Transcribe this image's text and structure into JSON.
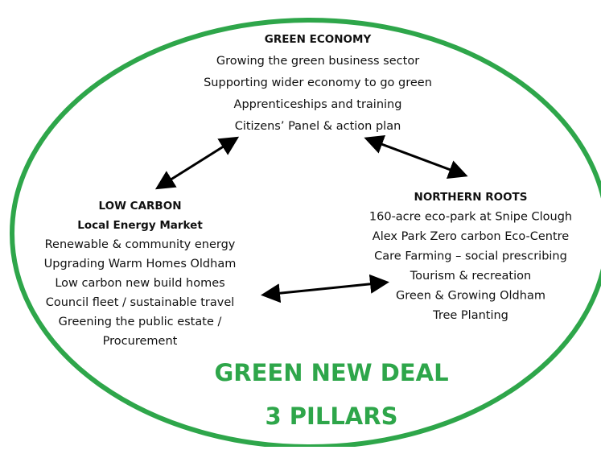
{
  "sections": [
    {
      "title": "GREEN ECONOMY",
      "lines": [
        "Growing the green business sector",
        "Supporting wider economy to go green",
        "Apprenticeships and training",
        "Citizens’ Panel & action plan"
      ]
    },
    {
      "title": "LOW CARBON",
      "lines": [
        "Local Energy Market",
        "Renewable & community energy",
        "Upgrading Warm Homes Oldham",
        "Low carbon new build homes",
        "Council fleet / sustainable travel",
        "Greening the public estate /",
        "Procurement"
      ]
    },
    {
      "title": "NORTHERN ROOTS",
      "lines": [
        "160-acre eco-park at Snipe Clough",
        "Alex Park Zero carbon Eco-Centre",
        "Care Farming – social prescribing",
        "Tourism & recreation",
        "Green & Growing Oldham",
        "Tree Planting"
      ]
    }
  ],
  "center": [
    "GREEN NEW DEAL",
    "3 PILLARS"
  ]
}
